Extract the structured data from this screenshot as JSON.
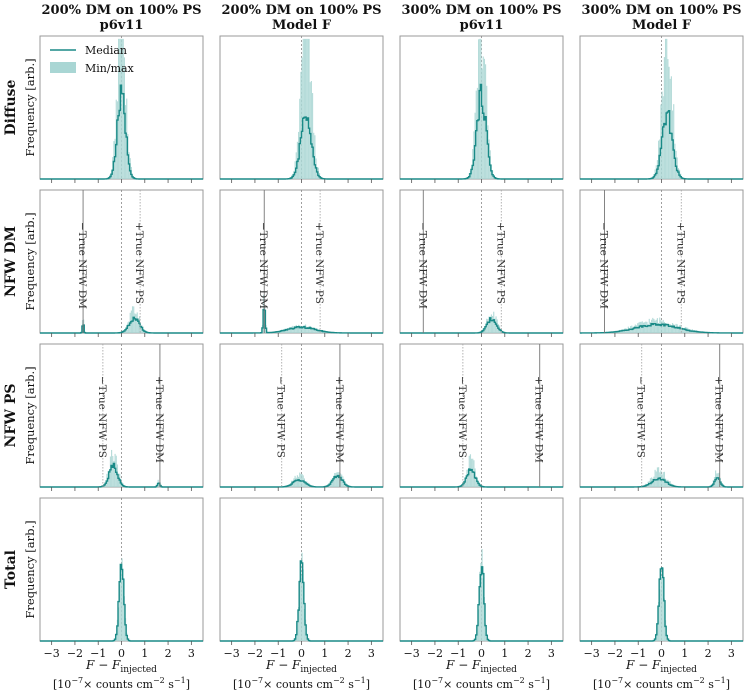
{
  "figure": {
    "columns": [
      {
        "line1": "200% DM on 100% PS",
        "line2": "p6v11"
      },
      {
        "line1": "200% DM on 100% PS",
        "line2": "Model F"
      },
      {
        "line1": "300% DM on 100% PS",
        "line2": "p6v11"
      },
      {
        "line1": "300% DM on 100% PS",
        "line2": "Model F"
      }
    ],
    "rows": [
      "Diffuse",
      "NFW DM",
      "NFW PS",
      "Total"
    ],
    "ylabel": "Frequency [arb.]",
    "xlabel_main": "F − F",
    "xlabel_sub": "injected",
    "xlabel_units_pre": "[10",
    "xlabel_units_exp1": "−7",
    "xlabel_units_mid": "× counts cm",
    "xlabel_units_exp2": "−2",
    "xlabel_units_s": " s",
    "xlabel_units_exp3": "−1",
    "xlabel_units_post": "]",
    "legend": {
      "median": "Median",
      "minmax": "Min/max"
    }
  },
  "colors": {
    "median": "#1a8a87",
    "band": "#a9d6d4",
    "axes": "#999999",
    "text": "#111111",
    "zero_line": "#888888",
    "true_line": "#aaaaaa",
    "true_line_solid": "#777777"
  },
  "chart_data": {
    "type": "area",
    "xlim": [
      -3.5,
      3.5
    ],
    "xticks": [
      -3,
      -2,
      -1,
      0,
      1,
      2,
      3
    ],
    "annotation_labels": {
      "neg_dm": "−True NFW DM",
      "pos_dm": "+True NFW DM",
      "neg_ps": "−True NFW PS",
      "pos_ps": "+True NFW PS"
    },
    "panels": [
      {
        "row": 0,
        "col": 0,
        "peaks": [
          {
            "mu": 0.0,
            "sigma": 0.18,
            "amp": 0.58
          }
        ],
        "band_scale": 1.9,
        "lines": []
      },
      {
        "row": 0,
        "col": 1,
        "peaks": [
          {
            "mu": 0.2,
            "sigma": 0.22,
            "amp": 0.48
          }
        ],
        "band_scale": 2.3,
        "lines": []
      },
      {
        "row": 0,
        "col": 2,
        "peaks": [
          {
            "mu": 0.0,
            "sigma": 0.2,
            "amp": 0.58
          }
        ],
        "band_scale": 1.75,
        "lines": []
      },
      {
        "row": 0,
        "col": 3,
        "peaks": [
          {
            "mu": 0.25,
            "sigma": 0.22,
            "amp": 0.44
          }
        ],
        "band_scale": 2.2,
        "lines": []
      },
      {
        "row": 1,
        "col": 0,
        "peaks": [
          {
            "mu": 0.55,
            "sigma": 0.22,
            "amp": 0.1
          },
          {
            "mu": -1.65,
            "sigma": 0.03,
            "amp": 0.07
          }
        ],
        "band_scale": 1.6,
        "lines": [
          {
            "x": -1.65,
            "label": "neg_dm",
            "style": "solid"
          },
          {
            "x": 0.8,
            "label": "pos_ps",
            "style": "dotted"
          }
        ]
      },
      {
        "row": 1,
        "col": 1,
        "peaks": [
          {
            "mu": 0.0,
            "sigma": 0.6,
            "amp": 0.04
          },
          {
            "mu": -1.6,
            "sigma": 0.04,
            "amp": 0.2
          }
        ],
        "band_scale": 1.3,
        "lines": [
          {
            "x": -1.6,
            "label": "neg_dm",
            "style": "solid"
          },
          {
            "x": 0.8,
            "label": "pos_ps",
            "style": "dotted"
          }
        ]
      },
      {
        "row": 1,
        "col": 2,
        "peaks": [
          {
            "mu": 0.45,
            "sigma": 0.2,
            "amp": 0.1
          }
        ],
        "band_scale": 1.6,
        "lines": [
          {
            "x": -2.5,
            "label": "neg_dm",
            "style": "solid"
          },
          {
            "x": 0.85,
            "label": "pos_ps",
            "style": "dotted"
          }
        ]
      },
      {
        "row": 1,
        "col": 3,
        "peaks": [
          {
            "mu": -0.2,
            "sigma": 0.9,
            "amp": 0.06
          }
        ],
        "band_scale": 1.5,
        "lines": [
          {
            "x": -2.45,
            "label": "neg_dm",
            "style": "solid"
          },
          {
            "x": 0.85,
            "label": "pos_ps",
            "style": "dotted"
          }
        ]
      },
      {
        "row": 2,
        "col": 0,
        "peaks": [
          {
            "mu": -0.35,
            "sigma": 0.18,
            "amp": 0.15
          },
          {
            "mu": 1.6,
            "sigma": 0.05,
            "amp": 0.03
          }
        ],
        "band_scale": 1.6,
        "lines": [
          {
            "x": -0.8,
            "label": "neg_ps",
            "style": "dotted"
          },
          {
            "x": 1.65,
            "label": "pos_dm",
            "style": "solid"
          }
        ]
      },
      {
        "row": 2,
        "col": 1,
        "peaks": [
          {
            "mu": -0.1,
            "sigma": 0.25,
            "amp": 0.05
          },
          {
            "mu": 1.55,
            "sigma": 0.2,
            "amp": 0.08
          }
        ],
        "band_scale": 1.7,
        "lines": [
          {
            "x": -0.85,
            "label": "neg_ps",
            "style": "dotted"
          },
          {
            "x": 1.65,
            "label": "pos_dm",
            "style": "solid"
          }
        ]
      },
      {
        "row": 2,
        "col": 2,
        "peaks": [
          {
            "mu": -0.45,
            "sigma": 0.18,
            "amp": 0.12
          }
        ],
        "band_scale": 1.6,
        "lines": [
          {
            "x": -0.8,
            "label": "neg_ps",
            "style": "dotted"
          },
          {
            "x": 2.5,
            "label": "pos_dm",
            "style": "solid"
          }
        ]
      },
      {
        "row": 2,
        "col": 3,
        "peaks": [
          {
            "mu": -0.1,
            "sigma": 0.3,
            "amp": 0.06
          },
          {
            "mu": 2.4,
            "sigma": 0.12,
            "amp": 0.06
          }
        ],
        "band_scale": 1.9,
        "lines": [
          {
            "x": -0.85,
            "label": "neg_ps",
            "style": "dotted"
          },
          {
            "x": 2.5,
            "label": "pos_dm",
            "style": "solid"
          }
        ]
      },
      {
        "row": 3,
        "col": 0,
        "peaks": [
          {
            "mu": 0.0,
            "sigma": 0.1,
            "amp": 0.55
          }
        ],
        "band_scale": 1.08,
        "lines": []
      },
      {
        "row": 3,
        "col": 1,
        "peaks": [
          {
            "mu": 0.0,
            "sigma": 0.1,
            "amp": 0.55
          }
        ],
        "band_scale": 1.08,
        "lines": []
      },
      {
        "row": 3,
        "col": 2,
        "peaks": [
          {
            "mu": 0.0,
            "sigma": 0.1,
            "amp": 0.55
          }
        ],
        "band_scale": 1.08,
        "lines": []
      },
      {
        "row": 3,
        "col": 3,
        "peaks": [
          {
            "mu": 0.0,
            "sigma": 0.1,
            "amp": 0.55
          }
        ],
        "band_scale": 1.08,
        "lines": []
      }
    ]
  }
}
